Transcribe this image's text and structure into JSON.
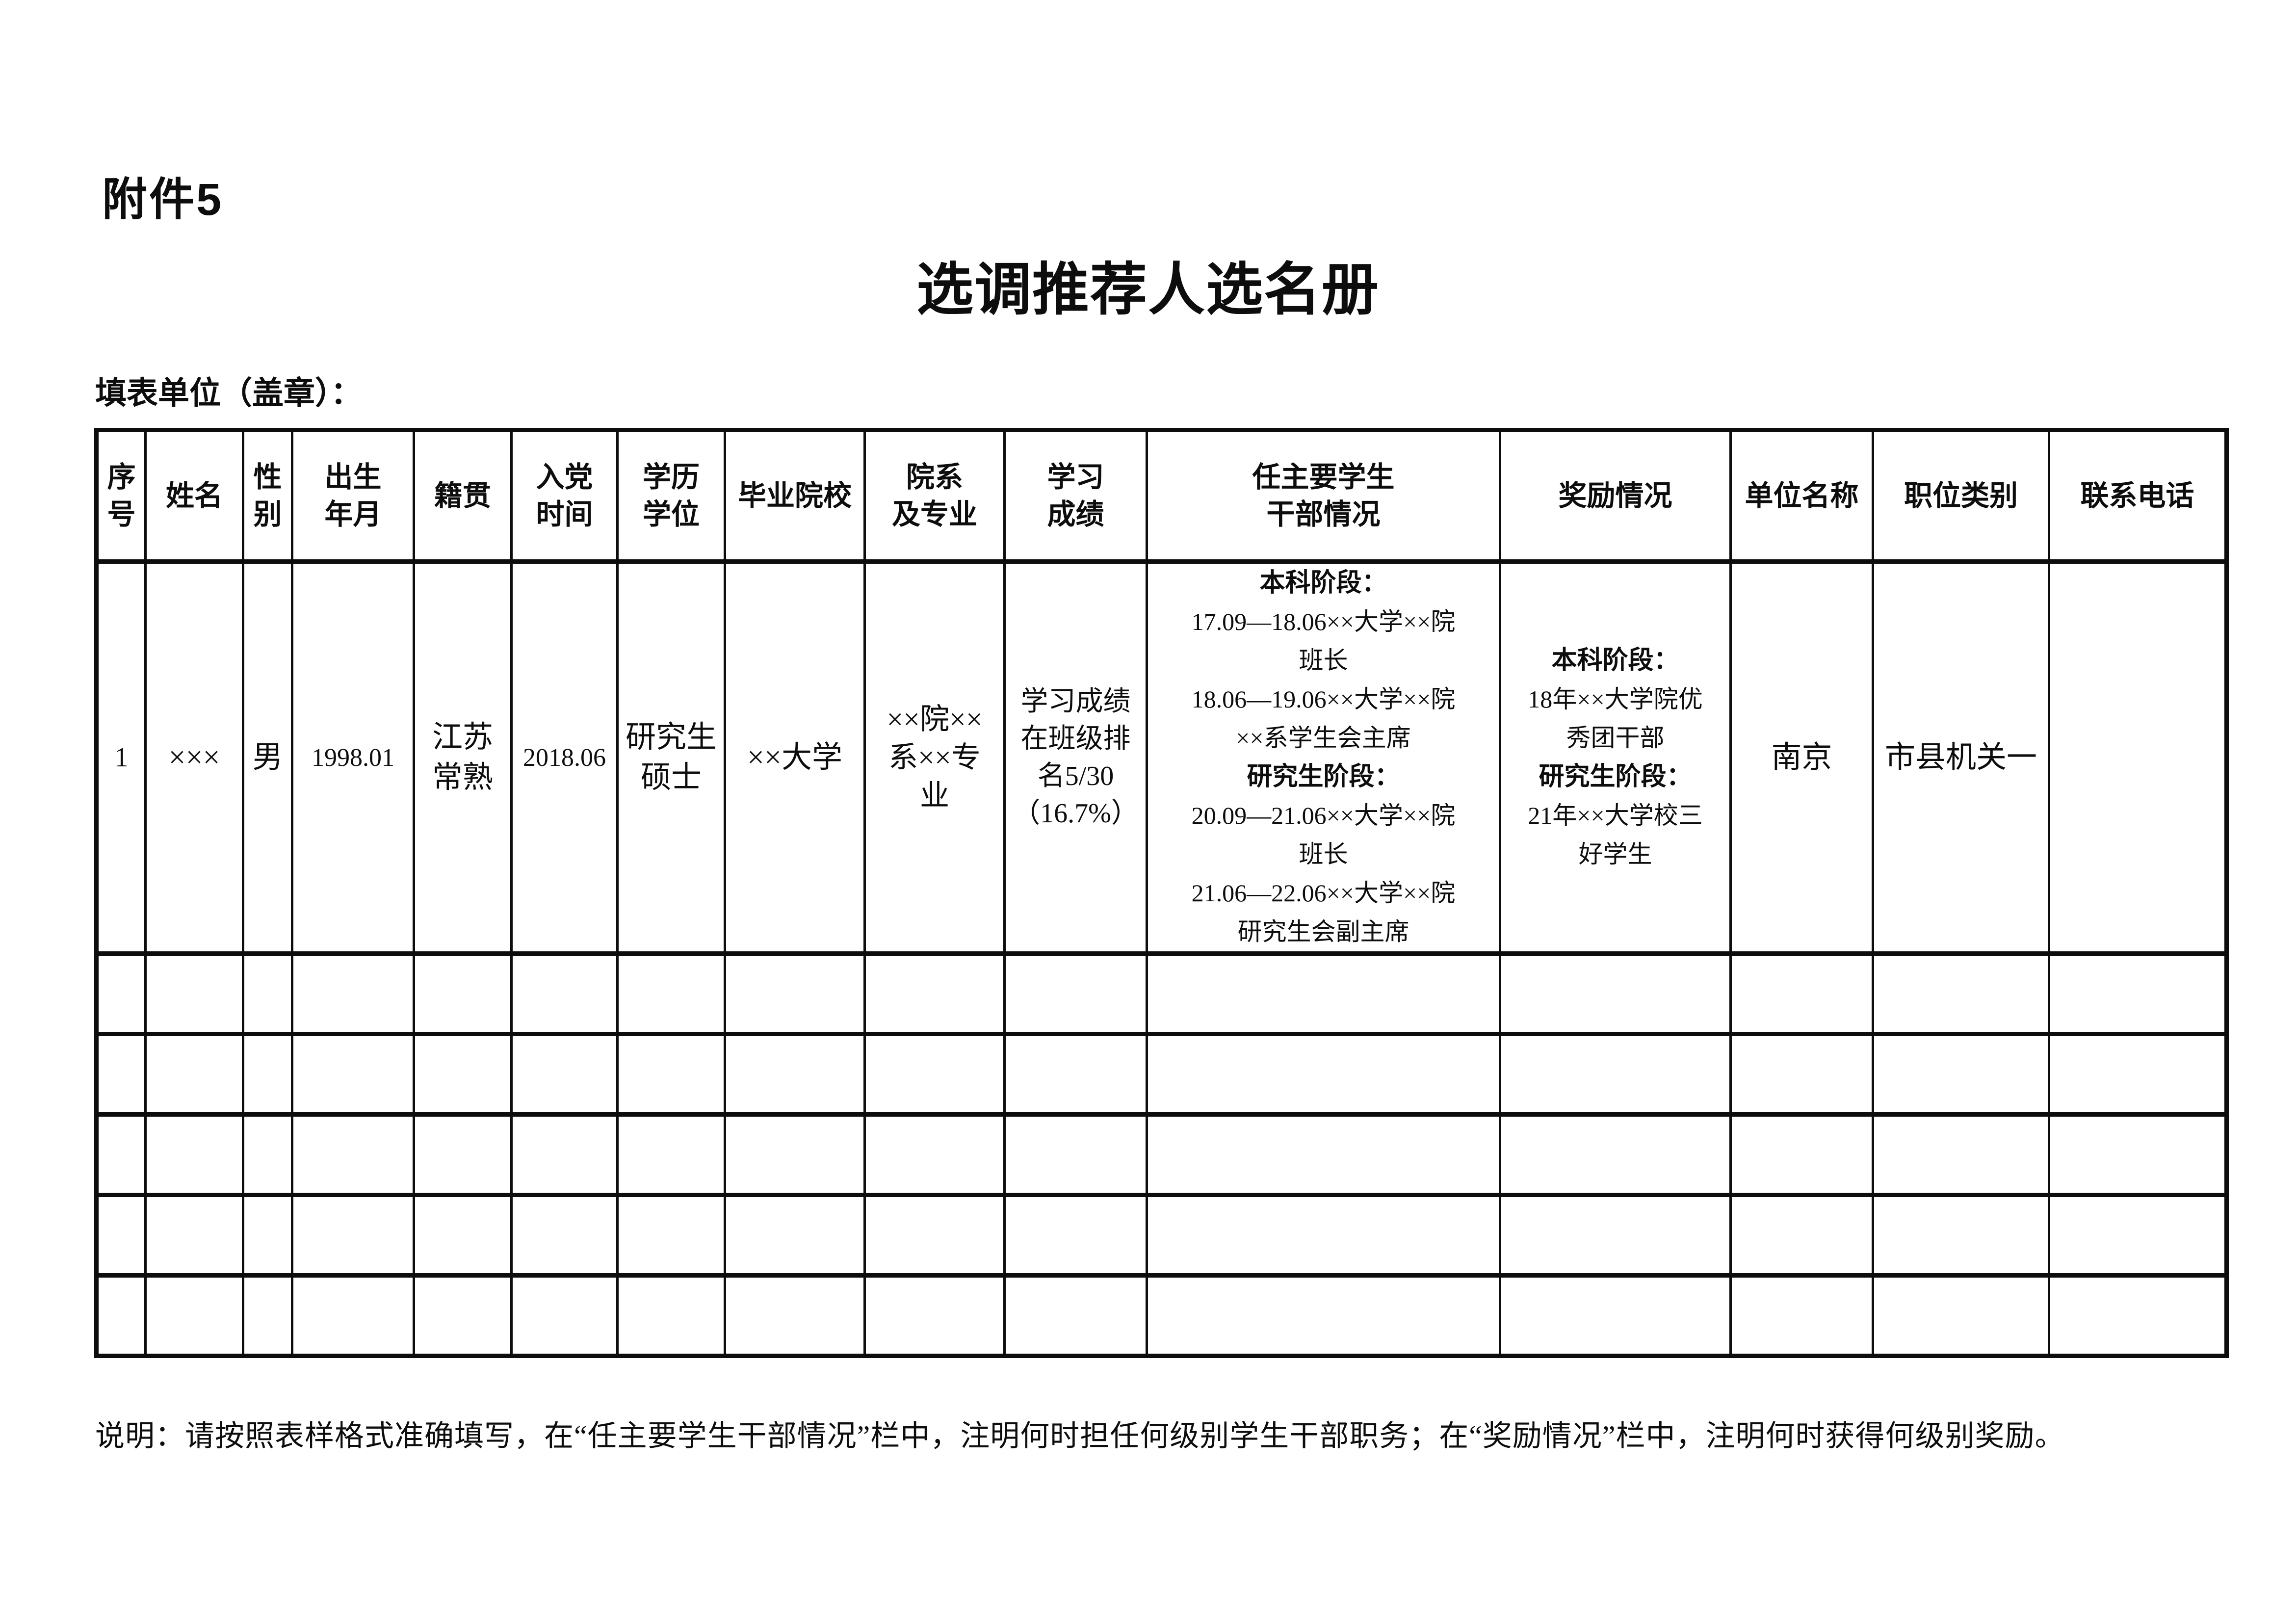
{
  "attachment_label": "附件5",
  "title": "选调推荐人选名册",
  "form_unit_label": "填表单位（盖章）：",
  "note": "说明：请按照表样格式准确填写，在“任主要学生干部情况”栏中，注明何时担任何级别学生干部职务；在“奖励情况”栏中，注明何时获得何级别奖励。",
  "table": {
    "headers": [
      "序\n号",
      "姓名",
      "性\n别",
      "出生\n年月",
      "籍贯",
      "入党\n时间",
      "学历\n学位",
      "毕业院校",
      "院系\n及专业",
      "学习\n成绩",
      "任主要学生\n干部情况",
      "奖励情况",
      "单位名称",
      "职位类别",
      "联系电话"
    ],
    "rows": [
      {
        "seq": "1",
        "name": "×××",
        "gender": "男",
        "birth_date": "1998.01",
        "native_place": "江苏\n常熟",
        "party_join_time": "2018.06",
        "degree": "研究生\n硕士",
        "university": "××大学",
        "department_major": "××院××\n系××专\n业",
        "academic_record": "学习成绩\n在班级排\n名5/30\n（16.7%）",
        "student_cadre_lines": [
          {
            "text": "本科阶段：",
            "bold": true
          },
          {
            "text": "17.09—18.06××大学××院",
            "bold": false
          },
          {
            "text": "班长",
            "bold": false
          },
          {
            "text": "18.06—19.06××大学××院",
            "bold": false
          },
          {
            "text": "××系学生会主席",
            "bold": false
          },
          {
            "text": "研究生阶段：",
            "bold": true
          },
          {
            "text": "20.09—21.06××大学××院",
            "bold": false
          },
          {
            "text": "班长",
            "bold": false
          },
          {
            "text": "21.06—22.06××大学××院",
            "bold": false
          },
          {
            "text": "研究生会副主席",
            "bold": false
          }
        ],
        "awards_lines": [
          {
            "text": "本科阶段：",
            "bold": true
          },
          {
            "text": "18年××大学院优",
            "bold": false
          },
          {
            "text": "秀团干部",
            "bold": false
          },
          {
            "text": "研究生阶段：",
            "bold": true
          },
          {
            "text": "21年××大学校三",
            "bold": false
          },
          {
            "text": "好学生",
            "bold": false
          }
        ],
        "unit_name": "南京",
        "position_category": "市县机关一",
        "contact_phone": ""
      }
    ],
    "empty_row_count": 5,
    "column_count": 15
  },
  "colors": {
    "ink": "#0d0d0d",
    "paper": "#ffffff"
  }
}
